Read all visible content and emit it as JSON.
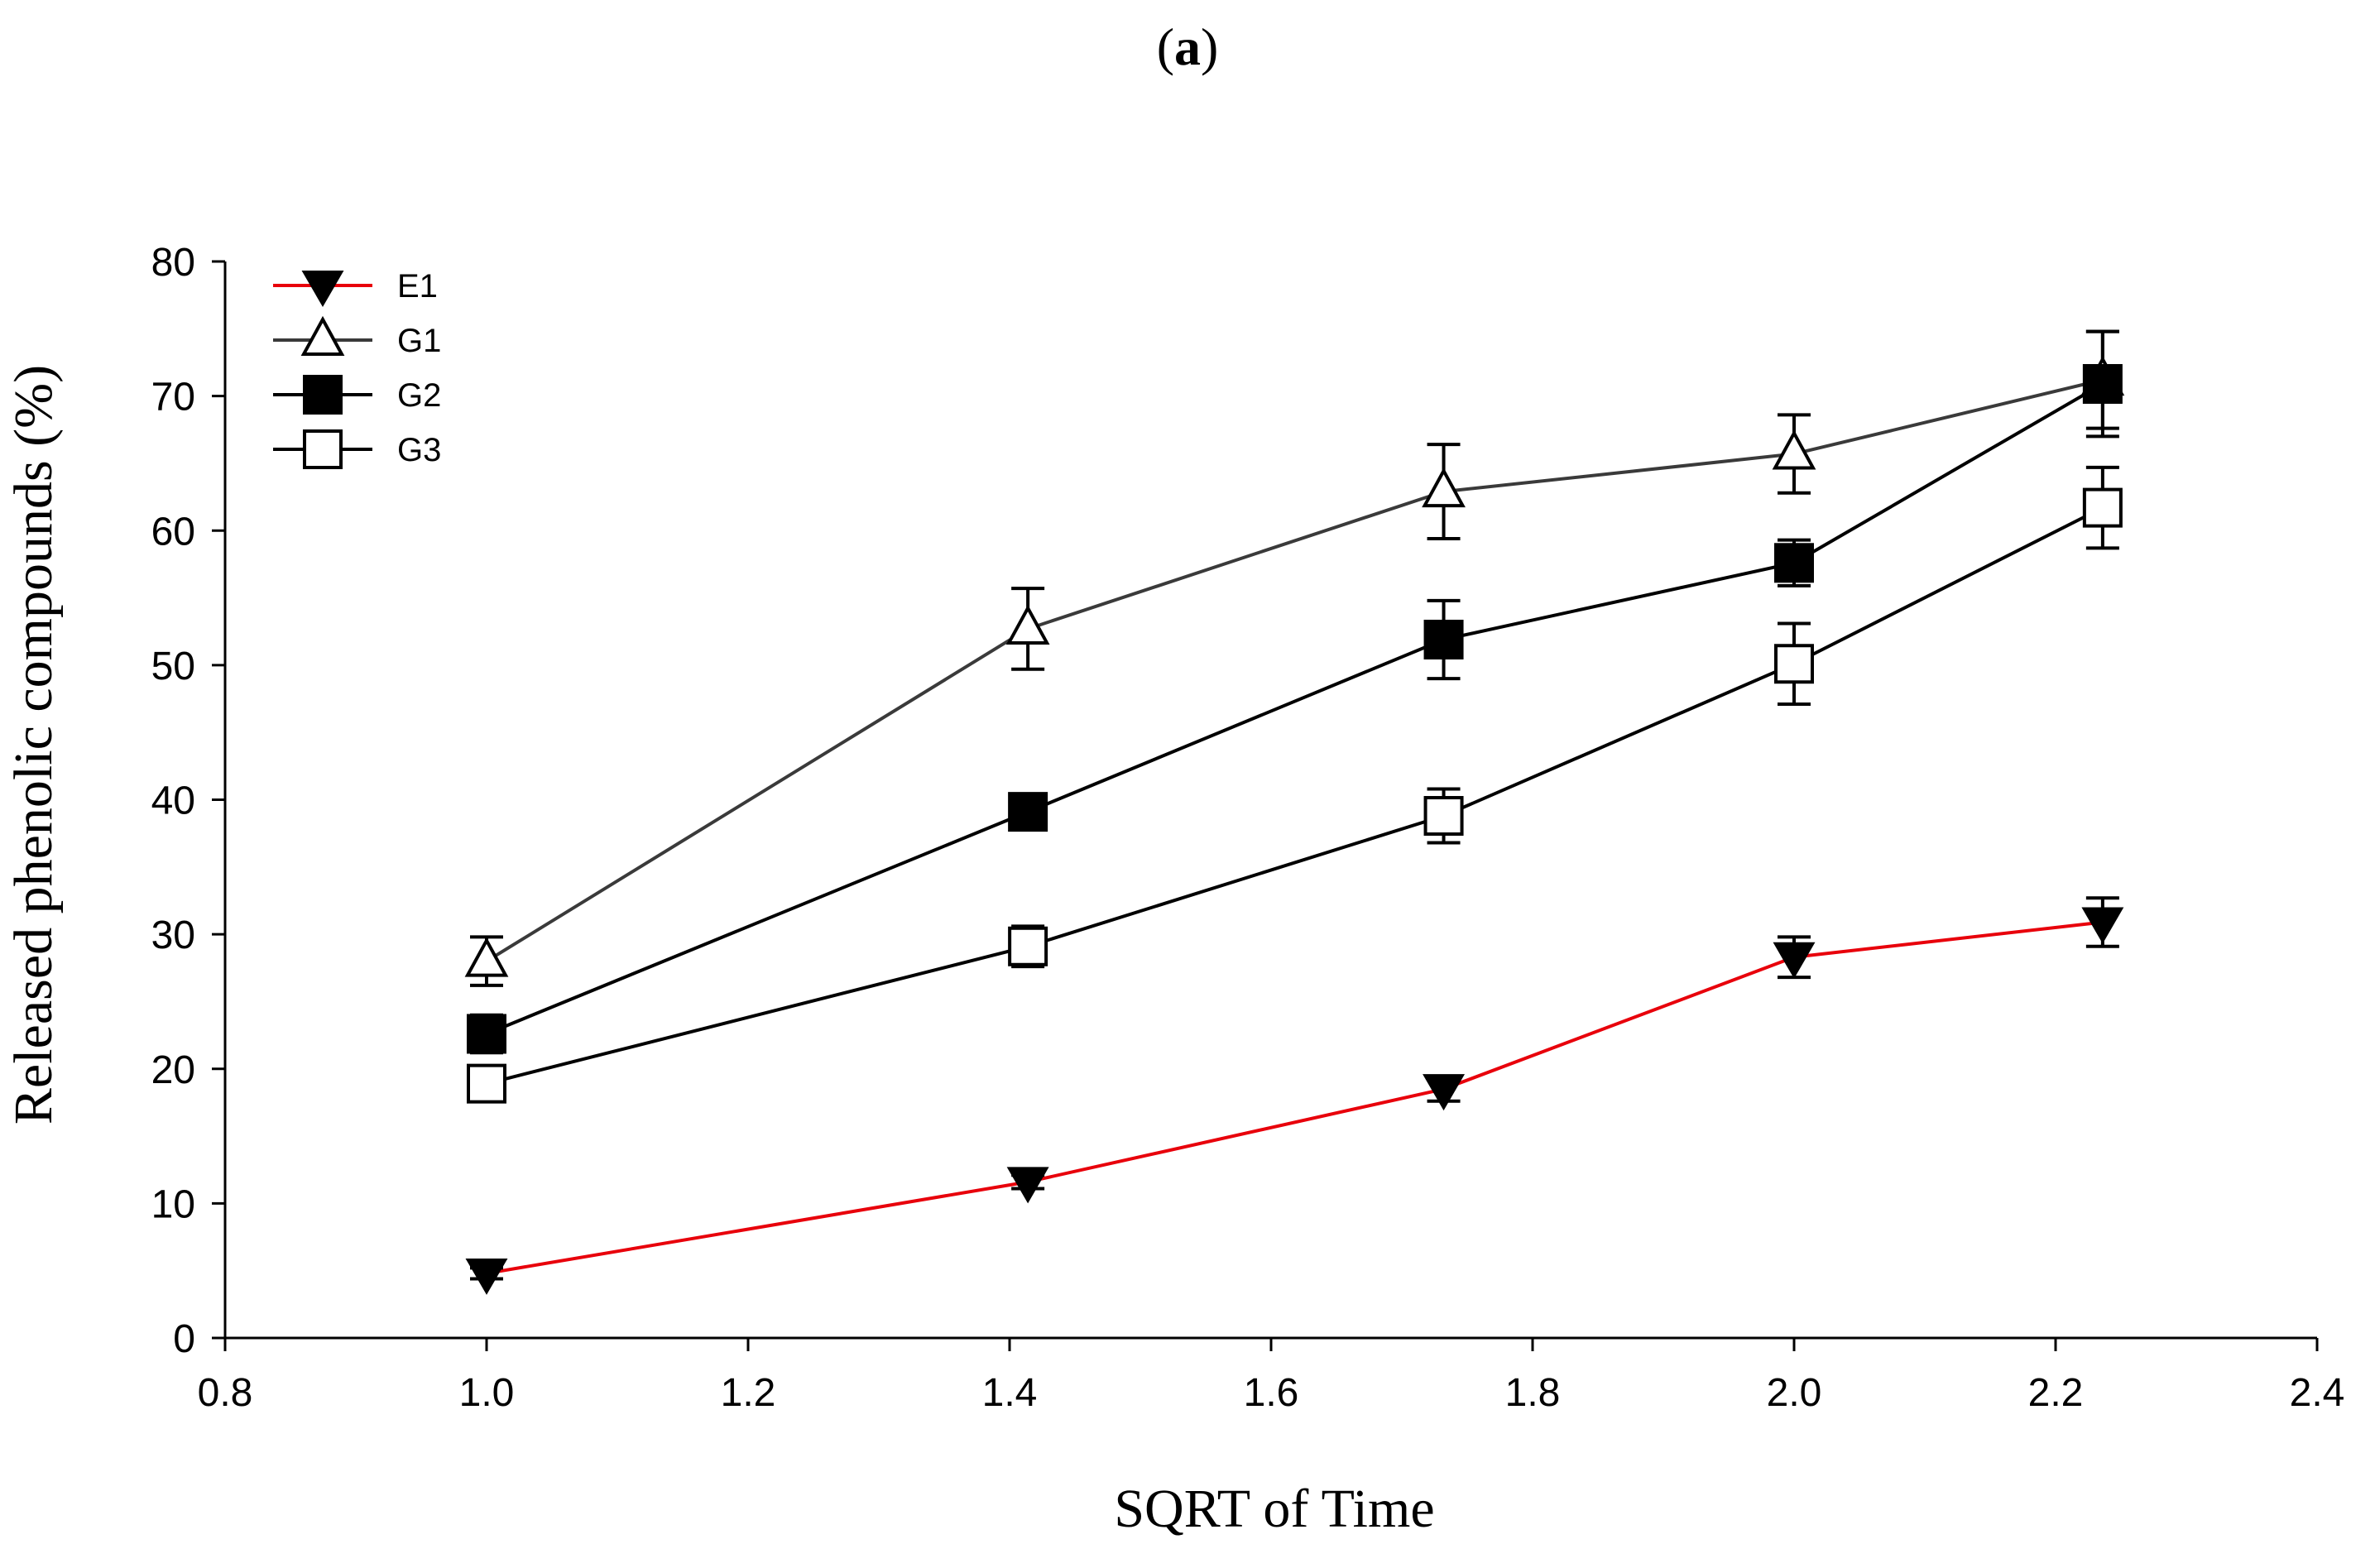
{
  "chart_data": {
    "type": "line",
    "title": "(a)",
    "title_parts": {
      "open": "(",
      "letter": "a",
      "close": ")"
    },
    "xlabel": "SQRT of Time",
    "ylabel": "Released phenolic compounds (%)",
    "xlim": [
      0.8,
      2.4
    ],
    "ylim": [
      0,
      80
    ],
    "x_ticks": [
      "0.8",
      "1.0",
      "1.2",
      "1.4",
      "1.6",
      "1.8",
      "2.0",
      "2.2",
      "2.4"
    ],
    "y_ticks": [
      "0",
      "10",
      "20",
      "30",
      "40",
      "50",
      "60",
      "70",
      "80"
    ],
    "grid": false,
    "legend_position": "top-left",
    "x": [
      1.0,
      1.414,
      1.732,
      2.0,
      2.236
    ],
    "series": [
      {
        "name": "E1",
        "marker": "triangle-down",
        "fill": "#000000",
        "line_color": "#e8000b",
        "values": [
          4.8,
          11.6,
          18.5,
          28.3,
          30.9
        ],
        "errors": [
          0.4,
          0.5,
          0.9,
          1.5,
          1.8
        ]
      },
      {
        "name": "G1",
        "marker": "triangle-up",
        "fill": "#ffffff",
        "line_color": "#3a3a3a",
        "values": [
          28.0,
          52.7,
          62.9,
          65.7,
          71.2
        ],
        "errors": [
          1.8,
          3.0,
          3.5,
          2.9,
          3.6
        ]
      },
      {
        "name": "G2",
        "marker": "square",
        "fill": "#000000",
        "line_color": "#000000",
        "values": [
          22.6,
          39.1,
          51.9,
          57.6,
          70.9
        ],
        "errors": [
          1.4,
          1.2,
          2.9,
          1.7,
          3.9
        ]
      },
      {
        "name": "G3",
        "marker": "square",
        "fill": "#ffffff",
        "line_color": "#000000",
        "values": [
          18.9,
          29.1,
          38.8,
          50.1,
          61.7
        ],
        "errors": [
          1.0,
          1.5,
          2.0,
          3.0,
          3.0
        ]
      }
    ]
  }
}
